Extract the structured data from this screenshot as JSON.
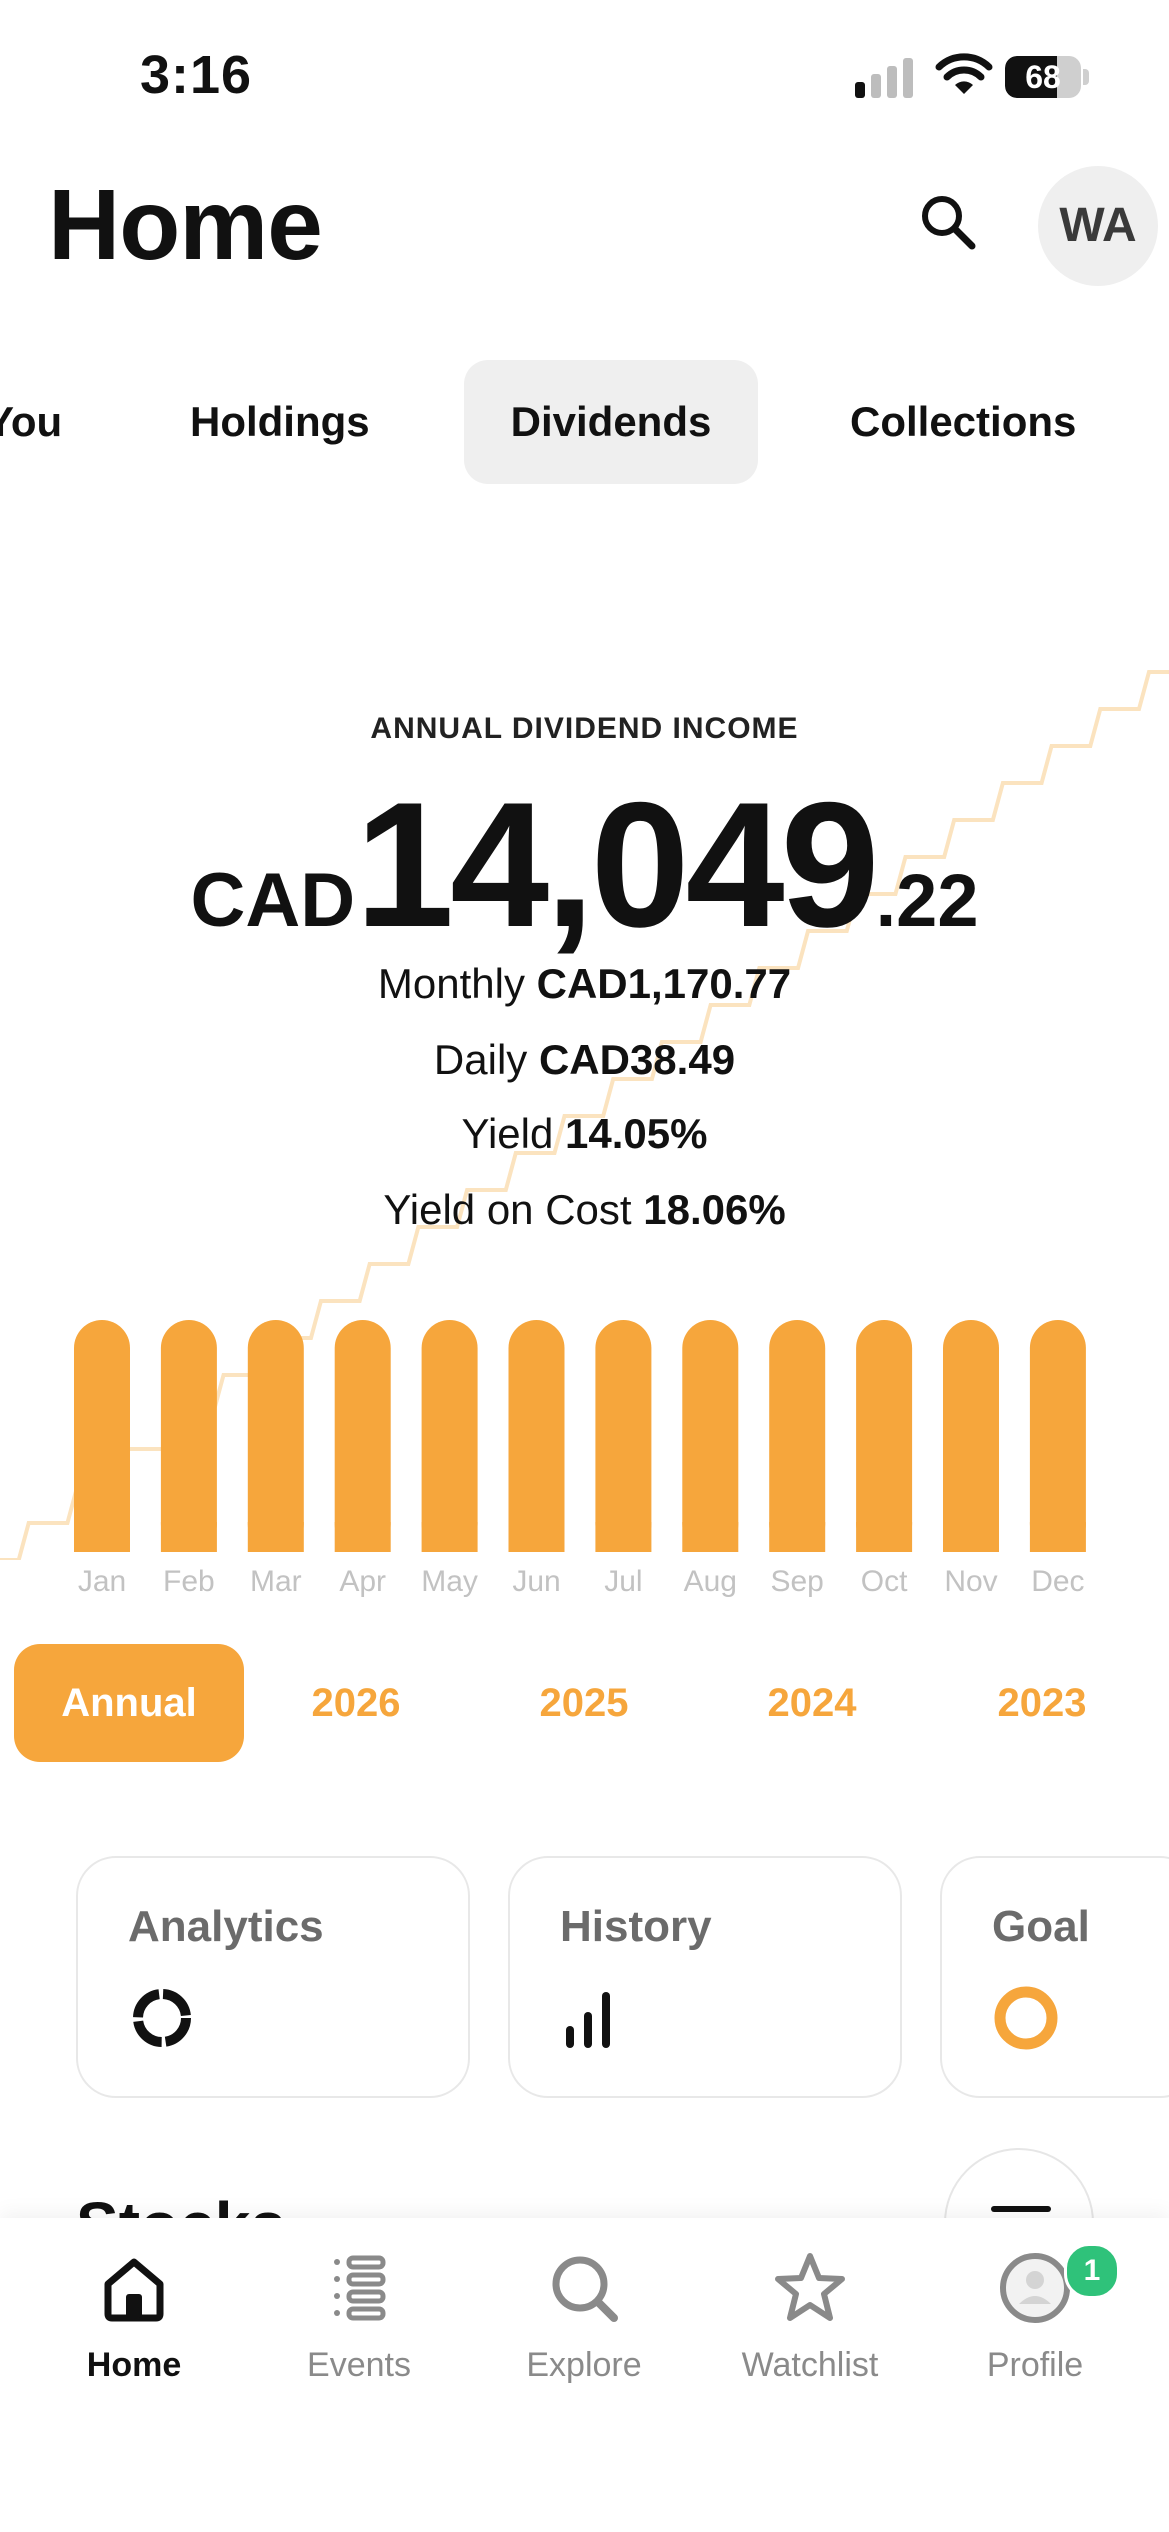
{
  "status_bar": {
    "time": "3:16",
    "battery": "68",
    "battery_level": 0.68
  },
  "header": {
    "title": "Home",
    "avatar_initials": "WA"
  },
  "tabs": [
    {
      "label": "You",
      "active": false
    },
    {
      "label": "Holdings",
      "active": false
    },
    {
      "label": "Dividends",
      "active": true
    },
    {
      "label": "Collections",
      "active": false
    }
  ],
  "summary": {
    "caption": "ANNUAL DIVIDEND INCOME",
    "currency": "CAD",
    "amount_whole": "14,049",
    "amount_cents": ".22",
    "monthly_label": "Monthly",
    "monthly_value": "CAD1,170.77",
    "daily_label": "Daily",
    "daily_value": "CAD38.49",
    "yield_label": "Yield",
    "yield_value": "14.05%",
    "yoc_label": "Yield on Cost",
    "yoc_value": "18.06%"
  },
  "chart_data": {
    "type": "bar",
    "categories": [
      "Jan",
      "Feb",
      "Mar",
      "Apr",
      "May",
      "Jun",
      "Jul",
      "Aug",
      "Sep",
      "Oct",
      "Nov",
      "Dec"
    ],
    "values": [
      1170.77,
      1170.77,
      1170.77,
      1170.77,
      1170.77,
      1170.77,
      1170.77,
      1170.77,
      1170.77,
      1170.77,
      1170.77,
      1170.77
    ],
    "cumulative_line": true,
    "bar_color": "#f6a63c",
    "line_color": "#fbe3bf"
  },
  "year_filters": [
    {
      "label": "Annual",
      "active": true
    },
    {
      "label": "2026",
      "active": false
    },
    {
      "label": "2025",
      "active": false
    },
    {
      "label": "2024",
      "active": false
    },
    {
      "label": "2023",
      "active": false
    }
  ],
  "cards": [
    {
      "title": "Analytics",
      "icon": "donut-icon"
    },
    {
      "title": "History",
      "icon": "bar-chart-icon"
    },
    {
      "title": "Goal",
      "icon": "ring-icon"
    }
  ],
  "stocks_section": {
    "title": "Stocks"
  },
  "bottom_nav": [
    {
      "label": "Home",
      "icon": "home-icon",
      "active": true
    },
    {
      "label": "Events",
      "icon": "events-icon",
      "active": false
    },
    {
      "label": "Explore",
      "icon": "explore-icon",
      "active": false
    },
    {
      "label": "Watchlist",
      "icon": "star-icon",
      "active": false
    },
    {
      "label": "Profile",
      "icon": "profile-icon",
      "active": false
    }
  ],
  "profile_badge": "1",
  "colors": {
    "accent": "#f6a63c",
    "badge": "#2fc27a"
  }
}
